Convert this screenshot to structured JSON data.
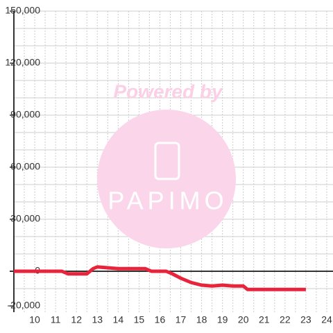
{
  "chart_data": {
    "type": "line",
    "x": [
      9,
      11,
      11.3,
      11.6,
      12.5,
      12.8,
      13,
      13.5,
      14,
      15,
      15.3,
      15.6,
      16.3,
      16.6,
      17,
      17.5,
      18,
      18.5,
      19,
      19.5,
      20,
      20.2,
      20.5,
      23
    ],
    "series": [
      {
        "color": "#e8243c",
        "values": [
          0,
          0,
          0,
          -1500,
          -1500,
          1500,
          2500,
          2000,
          1500,
          1500,
          1500,
          0,
          0,
          -1500,
          -4000,
          -6500,
          -8000,
          -8500,
          -8000,
          -8500,
          -8500,
          -10500,
          -10500,
          -10500
        ]
      }
    ],
    "xlim": [
      9,
      24.3
    ],
    "ylim": [
      -20000,
      150000
    ],
    "xticks": [
      10,
      11,
      12,
      13,
      14,
      15,
      16,
      17,
      18,
      19,
      20,
      21,
      22,
      23,
      24
    ],
    "yticks": [
      {
        "value": -20000,
        "label": "-20,000"
      },
      {
        "value": 0,
        "label": "0"
      },
      {
        "value": 30000,
        "label": "30,000"
      },
      {
        "value": 60000,
        "label": "60,000"
      },
      {
        "value": 90000,
        "label": "90,000"
      },
      {
        "value": 120000,
        "label": "120,000"
      },
      {
        "value": 150000,
        "label": "150,000"
      }
    ],
    "ygrid": [
      -10000,
      10000,
      20000,
      30000,
      40000,
      50000,
      60000,
      70000,
      80000,
      90000,
      100000,
      110000,
      120000,
      130000,
      140000,
      150000
    ],
    "xgrid": [
      9.5,
      10,
      10.5,
      11,
      11.5,
      12,
      12.5,
      13,
      13.5,
      14,
      14.5,
      15,
      15.5,
      16,
      16.5,
      17,
      17.5,
      18,
      18.5,
      19,
      19.5,
      20,
      20.5,
      21,
      21.5,
      22,
      22.5,
      23,
      23.5,
      24
    ],
    "watermark": {
      "text": "Powered by",
      "logo": "PAPIMO"
    }
  }
}
